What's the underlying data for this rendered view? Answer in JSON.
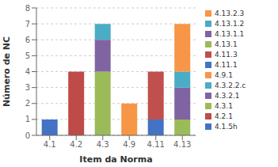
{
  "chart_data": {
    "type": "bar",
    "stacked": true,
    "categories": [
      "4.1",
      "4.2",
      "4.3",
      "4.9",
      "4.11",
      "4.13"
    ],
    "series": [
      {
        "name": "4.1.5h",
        "color": "#4472c4",
        "values": [
          1,
          0,
          0,
          0,
          0,
          0
        ]
      },
      {
        "name": "4.2.1",
        "color": "#be4b48",
        "values": [
          0,
          4,
          0,
          0,
          0,
          0
        ]
      },
      {
        "name": "4.3.1",
        "color": "#9bbb59",
        "values": [
          0,
          0,
          4,
          0,
          0,
          1
        ]
      },
      {
        "name": "4.3.2.1",
        "color": "#8064a2",
        "values": [
          0,
          0,
          2,
          0,
          0,
          2
        ]
      },
      {
        "name": "4.3.2.2.c",
        "color": "#4bacc6",
        "values": [
          0,
          0,
          1,
          0,
          0,
          1
        ]
      },
      {
        "name": "4.9.1",
        "color": "#f79646",
        "values": [
          0,
          0,
          0,
          2,
          0,
          0
        ]
      },
      {
        "name": "4.11.1",
        "color": "#4472c4",
        "values": [
          0,
          0,
          0,
          0,
          1,
          0
        ]
      },
      {
        "name": "4.11.3",
        "color": "#c0504d",
        "values": [
          0,
          0,
          0,
          0,
          3,
          0
        ]
      },
      {
        "name": "4.13.1",
        "color": "#9bbb59",
        "values": [
          0,
          0,
          0,
          0,
          0,
          0
        ]
      },
      {
        "name": "4.13.1.1",
        "color": "#8064a2",
        "values": [
          0,
          0,
          0,
          0,
          0,
          0
        ]
      },
      {
        "name": "4.13.1.2",
        "color": "#4bacc6",
        "values": [
          0,
          0,
          0,
          0,
          0,
          0
        ]
      },
      {
        "name": "4.13.2.3",
        "color": "#f79646",
        "values": [
          0,
          0,
          0,
          0,
          0,
          3
        ]
      }
    ],
    "xlabel": "Item da Norma",
    "ylabel": "Número de NC",
    "ylim": [
      0,
      8
    ],
    "yticks": [
      0,
      1,
      2,
      3,
      4,
      5,
      6,
      7,
      8
    ],
    "grid": true,
    "legend": "right"
  }
}
